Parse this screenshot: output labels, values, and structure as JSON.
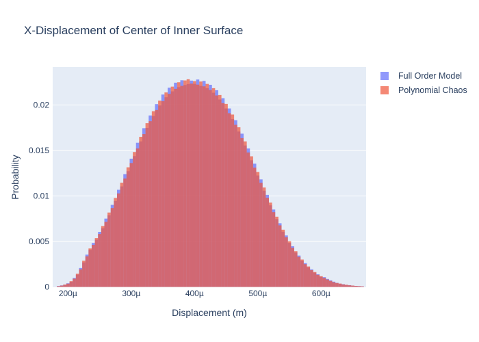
{
  "title": {
    "text": "X-Displacement of Center of Inner Surface"
  },
  "colors": {
    "title_text": "#2a3f5f",
    "axis_text": "#2a3f5f",
    "plot_background": "#E5ECF6",
    "grid": "#ffffff",
    "page_background": "#ffffff",
    "full_order_model": "#636EFA",
    "polynomial_chaos": "#EF553B",
    "bar_opacity": 0.7
  },
  "legend": {
    "items": [
      {
        "label": "Full Order Model",
        "color": "#636EFA"
      },
      {
        "label": "Polynomial Chaos",
        "color": "#EF553B"
      }
    ]
  },
  "chart_data": {
    "type": "bar",
    "subtype": "overlaid-histogram",
    "title": "X-Displacement of Center of Inner Surface",
    "xlabel": "Displacement (m)",
    "ylabel": "Probability",
    "grid": true,
    "legend_position": "outside-right-top",
    "plot_bg": "#E5ECF6",
    "grid_color": "#ffffff",
    "bar_opacity": 0.7,
    "xlim_microns": [
      176,
      671
    ],
    "ylim": [
      0,
      0.024
    ],
    "x_ticks": [
      {
        "value": 200,
        "label": "200µ"
      },
      {
        "value": 300,
        "label": "300µ"
      },
      {
        "value": 400,
        "label": "400µ"
      },
      {
        "value": 500,
        "label": "500µ"
      },
      {
        "value": 600,
        "label": "600µ"
      }
    ],
    "y_ticks": [
      {
        "value": 0,
        "label": "0"
      },
      {
        "value": 0.005,
        "label": "0.005"
      },
      {
        "value": 0.01,
        "label": "0.01"
      },
      {
        "value": 0.015,
        "label": "0.015"
      },
      {
        "value": 0.02,
        "label": "0.02"
      }
    ],
    "bin_width_microns": 5,
    "bin_centers_microns": [
      185,
      190,
      195,
      200,
      205,
      210,
      215,
      220,
      225,
      230,
      235,
      240,
      245,
      250,
      255,
      260,
      265,
      270,
      275,
      280,
      285,
      290,
      295,
      300,
      305,
      310,
      315,
      320,
      325,
      330,
      335,
      340,
      345,
      350,
      355,
      360,
      365,
      370,
      375,
      380,
      385,
      390,
      395,
      400,
      405,
      410,
      415,
      420,
      425,
      430,
      435,
      440,
      445,
      450,
      455,
      460,
      465,
      470,
      475,
      480,
      485,
      490,
      495,
      500,
      505,
      510,
      515,
      520,
      525,
      530,
      535,
      540,
      545,
      550,
      555,
      560,
      565,
      570,
      575,
      580,
      585,
      590,
      595,
      600,
      605,
      610,
      615,
      620,
      625,
      630,
      635,
      640,
      645,
      650,
      655,
      660,
      665
    ],
    "series": [
      {
        "name": "Full Order Model",
        "color": "#636EFA",
        "values": [
          0.0001,
          0.00017,
          0.00024,
          0.0004,
          0.00057,
          0.00099,
          0.00135,
          0.00208,
          0.0027,
          0.00355,
          0.00408,
          0.00483,
          0.00519,
          0.00605,
          0.00645,
          0.00751,
          0.00788,
          0.00902,
          0.00945,
          0.01068,
          0.01105,
          0.0124,
          0.01272,
          0.0141,
          0.01438,
          0.01585,
          0.016,
          0.01745,
          0.01748,
          0.01885,
          0.01878,
          0.0201,
          0.01995,
          0.02115,
          0.02085,
          0.0219,
          0.0215,
          0.02245,
          0.02196,
          0.02272,
          0.0222,
          0.0223,
          0.02268,
          0.02232,
          0.0228,
          0.0221,
          0.02265,
          0.02185,
          0.02222,
          0.02135,
          0.02162,
          0.0206,
          0.02075,
          0.01962,
          0.01962,
          0.01845,
          0.01832,
          0.01708,
          0.01685,
          0.01555,
          0.01522,
          0.01392,
          0.01355,
          0.01225,
          0.01182,
          0.01058,
          0.01012,
          0.00897,
          0.00851,
          0.00746,
          0.007,
          0.00607,
          0.00566,
          0.00484,
          0.00447,
          0.00378,
          0.00345,
          0.00288,
          0.00261,
          0.00214,
          0.00193,
          0.00157,
          0.00139,
          0.00112,
          0.00108,
          0.00088,
          0.00072,
          0.00058,
          0.00045,
          0.00035,
          0.0003,
          0.00022,
          0.00019,
          0.00014,
          0.00011,
          9e-05,
          7e-05
        ]
      },
      {
        "name": "Polynomial Chaos",
        "color": "#EF553B",
        "values": [
          9e-05,
          0.00015,
          0.00026,
          0.00036,
          0.00063,
          0.00091,
          0.00146,
          0.00193,
          0.00289,
          0.00337,
          0.00423,
          0.00462,
          0.00537,
          0.00582,
          0.0067,
          0.00716,
          0.00818,
          0.00867,
          0.00978,
          0.01028,
          0.01146,
          0.01192,
          0.01315,
          0.01362,
          0.01483,
          0.01522,
          0.0165,
          0.0168,
          0.018,
          0.01822,
          0.01932,
          0.01945,
          0.02048,
          0.02042,
          0.02138,
          0.02122,
          0.02202,
          0.02178,
          0.0225,
          0.0221,
          0.0227,
          0.02283,
          0.02235,
          0.02262,
          0.02224,
          0.02258,
          0.02205,
          0.02232,
          0.02165,
          0.02185,
          0.02105,
          0.0211,
          0.0202,
          0.02012,
          0.0191,
          0.01895,
          0.01782,
          0.01755,
          0.01636,
          0.016,
          0.01478,
          0.01436,
          0.01312,
          0.01264,
          0.01145,
          0.01093,
          0.0098,
          0.00927,
          0.00822,
          0.00772,
          0.00677,
          0.00629,
          0.00546,
          0.00502,
          0.0043,
          0.00393,
          0.00331,
          0.00301,
          0.0025,
          0.00225,
          0.00185,
          0.00164,
          0.00133,
          0.00118,
          0.001,
          0.00082,
          0.00066,
          0.00052,
          0.00043,
          0.00037,
          0.00028,
          0.00024,
          0.00018,
          0.00015,
          0.00011,
          9e-05,
          7e-05
        ]
      }
    ]
  }
}
